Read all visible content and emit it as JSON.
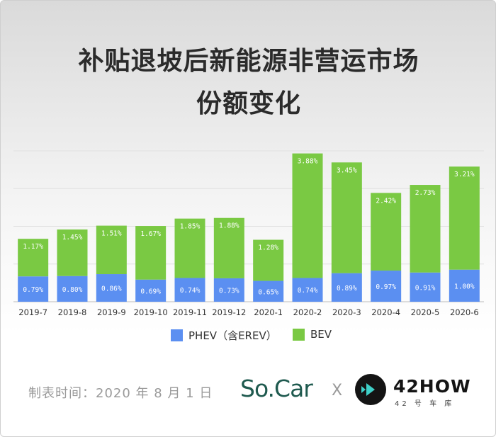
{
  "title": {
    "line1": "补贴退坡后新能源非营运市场",
    "line2": "份额变化"
  },
  "chart_data": {
    "type": "bar",
    "stacked": true,
    "categories": [
      "2019-7",
      "2019-8",
      "2019-9",
      "2019-10",
      "2019-11",
      "2019-12",
      "2020-1",
      "2020-2",
      "2020-3",
      "2020-4",
      "2020-5",
      "2020-6"
    ],
    "series": [
      {
        "name": "PHEV（含EREV）",
        "color": "#5b8ff1",
        "values": [
          0.79,
          0.8,
          0.86,
          0.69,
          0.74,
          0.73,
          0.65,
          0.74,
          0.89,
          0.97,
          0.91,
          1.0
        ],
        "labels": [
          "0.79%",
          "0.80%",
          "0.86%",
          "0.69%",
          "0.74%",
          "0.73%",
          "0.65%",
          "0.74%",
          "0.89%",
          "0.97%",
          "0.91%",
          "1.00%"
        ]
      },
      {
        "name": "BEV",
        "color": "#7ac943",
        "values": [
          1.17,
          1.45,
          1.51,
          1.67,
          1.85,
          1.88,
          1.28,
          3.88,
          3.45,
          2.42,
          2.73,
          3.21
        ],
        "labels": [
          "1.17%",
          "1.45%",
          "1.51%",
          "1.67%",
          "1.85%",
          "1.88%",
          "1.28%",
          "3.88%",
          "3.45%",
          "2.42%",
          "2.73%",
          "3.21%"
        ]
      }
    ],
    "ylim": [
      0,
      4.7
    ],
    "grid": true,
    "legend_position": "bottom"
  },
  "footer": {
    "note": "制表时间：2020 年 8 月 1 日",
    "brand_a": "So.Car",
    "separator": "X",
    "brand_b": "42HOW",
    "brand_b_sub": "42 号 车 库",
    "logo_icon": "42how-logo-icon"
  }
}
